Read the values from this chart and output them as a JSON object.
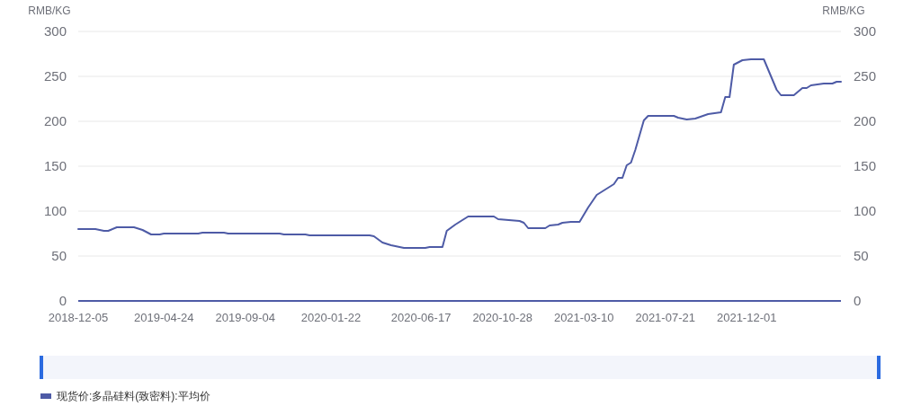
{
  "chart_data": {
    "type": "line",
    "ylabel": "RMB/KG",
    "y2label": "RMB/KG",
    "x": [
      "2018-12-05",
      "2019-01-02",
      "2019-01-16",
      "2019-01-23",
      "2019-02-06",
      "2019-03-06",
      "2019-03-20",
      "2019-04-03",
      "2019-04-17",
      "2019-04-24",
      "2019-06-19",
      "2019-06-26",
      "2019-07-31",
      "2019-08-07",
      "2019-10-30",
      "2019-11-06",
      "2019-12-11",
      "2019-12-18",
      "2020-03-25",
      "2020-04-01",
      "2020-04-15",
      "2020-04-29",
      "2020-05-06",
      "2020-05-20",
      "2020-06-24",
      "2020-07-01",
      "2020-07-22",
      "2020-07-29",
      "2020-08-12",
      "2020-09-02",
      "2020-10-14",
      "2020-10-21",
      "2020-11-25",
      "2020-12-02",
      "2020-12-09",
      "2021-01-06",
      "2021-01-13",
      "2021-01-27",
      "2021-02-03",
      "2021-02-17",
      "2021-03-03",
      "2021-03-17",
      "2021-03-31",
      "2021-04-07",
      "2021-04-21",
      "2021-04-28",
      "2021-05-05",
      "2021-05-12",
      "2021-05-19",
      "2021-05-26",
      "2021-06-02",
      "2021-06-16",
      "2021-06-23",
      "2021-08-04",
      "2021-08-11",
      "2021-08-25",
      "2021-09-08",
      "2021-09-29",
      "2021-10-20",
      "2021-10-27",
      "2021-11-03",
      "2021-11-10",
      "2021-11-24",
      "2021-12-08",
      "2021-12-29",
      "2022-01-19",
      "2022-01-26",
      "2022-02-16",
      "2022-03-02",
      "2022-03-09",
      "2022-03-16",
      "2022-04-06",
      "2022-04-20",
      "2022-04-27",
      "2022-05-04"
    ],
    "series": [
      {
        "name": "现货价:多晶硅料(致密料):平均价",
        "color": "#4e5ba6",
        "values": [
          80,
          80,
          78,
          78,
          82,
          82,
          79,
          74,
          74,
          75,
          75,
          76,
          76,
          75,
          75,
          74,
          74,
          73,
          73,
          72,
          65,
          62,
          61,
          59,
          59,
          60,
          60,
          78,
          85,
          94,
          94,
          91,
          89,
          87,
          81,
          81,
          84,
          85,
          87,
          88,
          88,
          104,
          118,
          121,
          127,
          130,
          137,
          137,
          151,
          154,
          168,
          201,
          206,
          206,
          204,
          202,
          203,
          208,
          210,
          227,
          227,
          263,
          268,
          269,
          269,
          235,
          229,
          229,
          237,
          237,
          240,
          242,
          242,
          244,
          244
        ]
      }
    ],
    "xlim": [
      "2018-12-05",
      "2022-05-04"
    ],
    "xticks": [
      "2018-12-05",
      "2019-04-24",
      "2019-09-04",
      "2020-01-22",
      "2020-06-17",
      "2020-10-28",
      "2021-03-10",
      "2021-07-21",
      "2021-12-01"
    ],
    "ylim": [
      0,
      300
    ],
    "yticks": [
      0,
      50,
      100,
      150,
      200,
      250,
      300
    ],
    "y2lim": [
      0,
      300
    ],
    "y2ticks": [
      0,
      50,
      100,
      150,
      200,
      250,
      300
    ],
    "grid": "y",
    "legend": "bottom left",
    "marker": "none",
    "line_style": "solid"
  }
}
